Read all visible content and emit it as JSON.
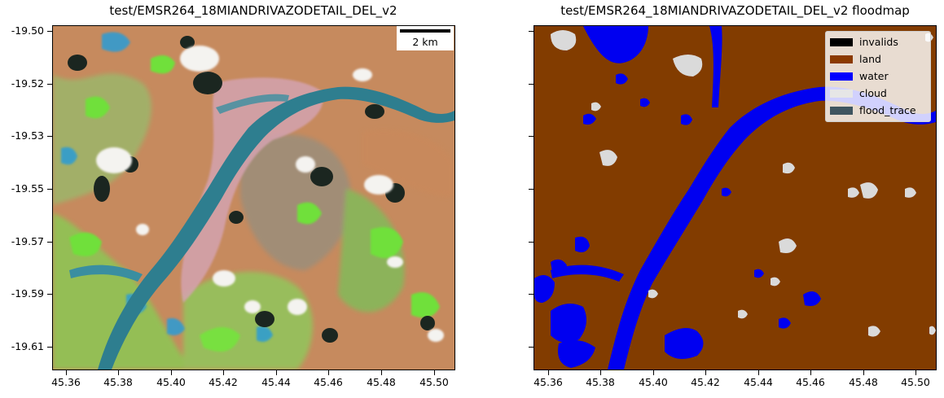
{
  "left_panel": {
    "title": "test/EMSR264_18MIANDRIVAZODETAIL_DEL_v2",
    "scalebar_label": "2 km"
  },
  "right_panel": {
    "title": "test/EMSR264_18MIANDRIVAZODETAIL_DEL_v2 floodmap"
  },
  "axes": {
    "y_ticks": [
      "-19.50",
      "-19.52",
      "-19.53",
      "-19.55",
      "-19.57",
      "-19.59",
      "-19.61"
    ],
    "x_ticks": [
      "45.36",
      "45.38",
      "45.40",
      "45.42",
      "45.44",
      "45.46",
      "45.48",
      "45.50"
    ],
    "lon_range": [
      45.355,
      45.507
    ],
    "lat_range": [
      -19.621,
      -19.498
    ]
  },
  "legend": {
    "position": "upper-right",
    "items": [
      {
        "label": "invalids",
        "color": "#000000"
      },
      {
        "label": "land",
        "color": "#8B3A00"
      },
      {
        "label": "water",
        "color": "#0000FF"
      },
      {
        "label": "cloud",
        "color": "#E6E6E6"
      },
      {
        "label": "flood_trace",
        "color": "#3F5560"
      }
    ]
  },
  "colors": {
    "land": "#823C00",
    "water": "#0000F0",
    "cloud": "#DADADA",
    "rgb_soil": "#C98559",
    "rgb_veg": "#6FE33C",
    "rgb_river": "#2E7A8C",
    "rgb_flood_pink": "#D9A9B5",
    "rgb_shadow": "#1E2A20",
    "rgb_cloud": "#F2F2F0"
  }
}
